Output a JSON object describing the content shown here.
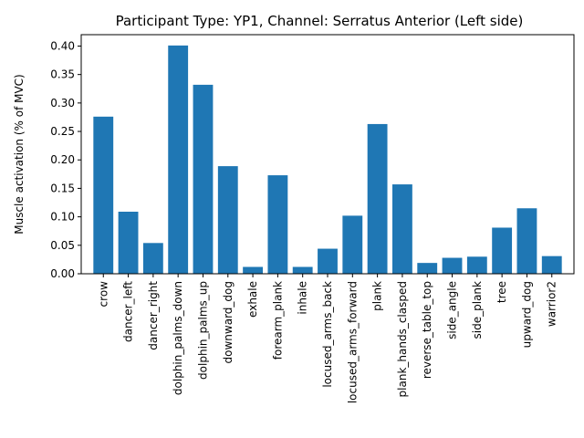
{
  "chart_data": {
    "type": "bar",
    "title": "Participant Type: YP1, Channel: Serratus Anterior (Left side)",
    "xlabel": "",
    "ylabel": "Muscle activation (% of MVC)",
    "ylim": [
      0,
      0.42
    ],
    "yticks": [
      "0.00",
      "0.05",
      "0.10",
      "0.15",
      "0.20",
      "0.25",
      "0.30",
      "0.35",
      "0.40"
    ],
    "ytick_values": [
      0,
      0.05,
      0.1,
      0.15,
      0.2,
      0.25,
      0.3,
      0.35,
      0.4
    ],
    "grid": false,
    "bar_color": "#1f77b4",
    "categories": [
      "crow",
      "dancer_left",
      "dancer_right",
      "dolphin_palms_down",
      "dolphin_palms_up",
      "downward_dog",
      "exhale",
      "forearm_plank",
      "inhale",
      "locused_arms_back",
      "locused_arms_forward",
      "plank",
      "plank_hands_clasped",
      "reverse_table_top",
      "side_angle",
      "side_plank",
      "tree",
      "upward_dog",
      "warrior2"
    ],
    "values": [
      0.276,
      0.109,
      0.054,
      0.401,
      0.332,
      0.189,
      0.012,
      0.173,
      0.012,
      0.044,
      0.102,
      0.263,
      0.157,
      0.019,
      0.028,
      0.03,
      0.081,
      0.115,
      0.031
    ]
  }
}
